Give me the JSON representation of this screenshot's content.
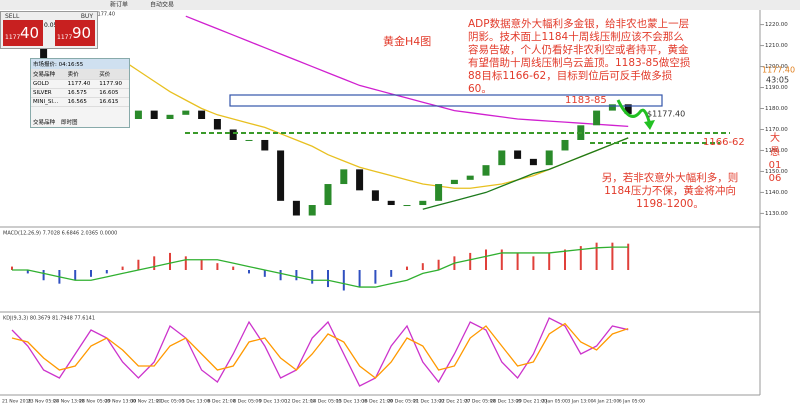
{
  "window": {
    "title": "GOLD,H4 1179.90 1181.20 1176.00 1177.40",
    "toolbar": [
      "新订单",
      "自动交易"
    ]
  },
  "trade_panel": {
    "sell": "SELL",
    "buy": "BUY",
    "lots": "0.05",
    "sell_small": "1177",
    "sell_big": "40",
    "buy_small": "1177",
    "buy_big": "90"
  },
  "market_watch": {
    "title": "市场报价: 04:16:55",
    "columns": [
      "交易品种",
      "卖价",
      "买价"
    ],
    "rows": [
      [
        "GOLD",
        "1177.40",
        "1177.90"
      ],
      [
        "SILVER",
        "16.575",
        "16.605"
      ],
      [
        "MINI_SI...",
        "16.565",
        "16.615"
      ]
    ],
    "tabs": [
      "交易品种",
      "即时图"
    ]
  },
  "annotations": {
    "chart_name": "黄金H4图",
    "analysis": "ADP数据意外大幅利多金银，给非农也蒙上一层阴影。技术面上1184十周线压制应该不会那么容易告破，个人仍看好非农利空或者持平，黄金有望借助十周线压制乌云盖顶。1183-85做空损88目标1166-62，目标到位后可反手做多损60。",
    "short_zone": "1183-85",
    "target_zone": "1166-62",
    "price_note": "$1177.40",
    "alternative": "另，若非农意外大幅利多，则1184压力不保，黄金将冲向1198-1200。",
    "signature": [
      "大",
      "愚",
      "01",
      "06"
    ],
    "last_price": "1177.40",
    "countdown": "43:05"
  },
  "chart_data": {
    "type": "candlestick",
    "up_color": "#2a8a2a",
    "down_color": "#111111",
    "values": [
      1220,
      1210,
      1203,
      1198,
      1196,
      1191,
      1179,
      1175,
      1179,
      1175,
      1177,
      1179,
      1175,
      1170,
      1165,
      1165,
      1160,
      1136,
      1129,
      1134,
      1144,
      1151,
      1141,
      1136,
      1134,
      1134,
      1136,
      1144,
      1146,
      1148,
      1153,
      1160,
      1156,
      1153,
      1160,
      1165,
      1172,
      1179,
      1182,
      1177.4
    ],
    "overlays": [
      {
        "color": "#d020d0",
        "values": [
          null,
          null,
          null,
          null,
          null,
          null,
          null,
          null,
          null,
          null,
          null,
          1224,
          1221,
          1218,
          1215,
          1212,
          1209,
          1206,
          1203,
          1200,
          1197,
          1194,
          1191,
          1189,
          1187,
          1185,
          1183,
          1181,
          1179,
          1178,
          1177,
          1176,
          1175,
          1174.5,
          1174,
          1173.5,
          1173,
          1172.5,
          1172,
          1171.5
        ]
      },
      {
        "color": "#e8c020",
        "values": [
          null,
          null,
          null,
          null,
          null,
          null,
          null,
          1203,
          1198,
          1193,
          1188,
          1184,
          1180,
          1177,
          1175,
          1173,
          1171,
          1168,
          1165,
          1162,
          1158,
          1155,
          1152,
          1150,
          1148,
          1146,
          1144,
          1143,
          1142,
          1142,
          1143,
          1144,
          1146,
          1148,
          1151,
          1154,
          1157,
          1160,
          1163,
          1166
        ]
      },
      {
        "color": "#1c7a1c",
        "values": [
          null,
          null,
          null,
          null,
          null,
          null,
          null,
          null,
          null,
          null,
          null,
          null,
          null,
          null,
          null,
          null,
          null,
          null,
          null,
          null,
          null,
          null,
          null,
          null,
          null,
          null,
          1132,
          1134,
          1136,
          1138,
          1140,
          1143,
          1146,
          1149,
          1151,
          1154,
          1157,
          1160,
          1163,
          1166
        ]
      }
    ],
    "ylim": [
      1124,
      1226
    ],
    "yticks": [
      {
        "value": 1130,
        "label": "1130.00"
      },
      {
        "value": 1140,
        "label": "1140.00"
      },
      {
        "value": 1150,
        "label": "1150.00"
      },
      {
        "value": 1160,
        "label": "1160.00"
      },
      {
        "value": 1170,
        "label": "1170.00"
      },
      {
        "value": 1180,
        "label": "1180.00"
      },
      {
        "value": 1190,
        "label": "1190.00"
      },
      {
        "value": 1200,
        "label": "1200.00"
      },
      {
        "value": 1210,
        "label": "1210.00"
      },
      {
        "value": 1220,
        "label": "1220.00"
      }
    ],
    "x_labels": [
      "21 Nov 2016",
      "23 Nov 05:00",
      "24 Nov 13:00",
      "28 Nov 05:00",
      "29 Nov 13:00",
      "30 Nov 21:00",
      "2 Dec 05:00",
      "5 Dec 13:00",
      "6 Dec 21:00",
      "8 Dec 05:00",
      "9 Dec 13:00",
      "12 Dec 21:00",
      "14 Dec 05:00",
      "15 Dec 13:00",
      "16 Dec 21:00",
      "20 Dec 05:00",
      "21 Dec 13:00",
      "22 Dec 21:00",
      "27 Dec 05:00",
      "28 Dec 13:00",
      "29 Dec 21:00",
      "2 Jan 05:00",
      "3 Jan 13:00",
      "4 Jan 21:00",
      "6 Jan 05:00"
    ],
    "panels": [
      {
        "label": "MACD(12,26,9) 7.7028 6.6846 2.0365 0.0000",
        "ylim": [
          -12,
          12
        ],
        "pos_color": "#e0403a",
        "neg_color": "#3050c0",
        "histogram": [
          1,
          -1,
          -3,
          -4,
          -3,
          -2,
          -1,
          1,
          3,
          4,
          5,
          4,
          3,
          2,
          1,
          -1,
          -2,
          -3,
          -3,
          -4,
          -5,
          -6,
          -5,
          -4,
          -2,
          1,
          2,
          3,
          4,
          5,
          6,
          6,
          5,
          4,
          5,
          6,
          7,
          8,
          8,
          7.7
        ],
        "lines": [
          {
            "color": "#30b030",
            "values": [
              0,
              0,
              -1,
              -2,
              -3,
              -3,
              -2,
              -1,
              0,
              1,
              2,
              3,
              3,
              3,
              2,
              1,
              0,
              -1,
              -2,
              -3,
              -3,
              -4,
              -5,
              -5,
              -4,
              -3,
              -1,
              0,
              2,
              3,
              4,
              5,
              5,
              5,
              5,
              5.5,
              6,
              6.5,
              6.7,
              6.7
            ]
          }
        ]
      },
      {
        "label": "KDJ(9,3,3) 80.3679 81.7948 77.6141",
        "ylim": [
          0,
          100
        ],
        "lines": [
          {
            "color": "#cc33cc",
            "values": [
              80,
              60,
              30,
              20,
              50,
              80,
              70,
              40,
              20,
              40,
              85,
              70,
              30,
              15,
              50,
              90,
              60,
              20,
              30,
              70,
              90,
              50,
              10,
              20,
              60,
              85,
              40,
              15,
              50,
              90,
              80,
              40,
              20,
              50,
              95,
              85,
              50,
              60,
              85,
              80.4
            ]
          },
          {
            "color": "#ff9900",
            "values": [
              70,
              65,
              45,
              30,
              35,
              60,
              70,
              55,
              35,
              35,
              60,
              70,
              50,
              30,
              35,
              65,
              70,
              45,
              30,
              50,
              75,
              65,
              35,
              20,
              40,
              70,
              60,
              30,
              35,
              70,
              85,
              60,
              35,
              40,
              75,
              88,
              65,
              55,
              75,
              81.8
            ]
          }
        ]
      }
    ]
  }
}
